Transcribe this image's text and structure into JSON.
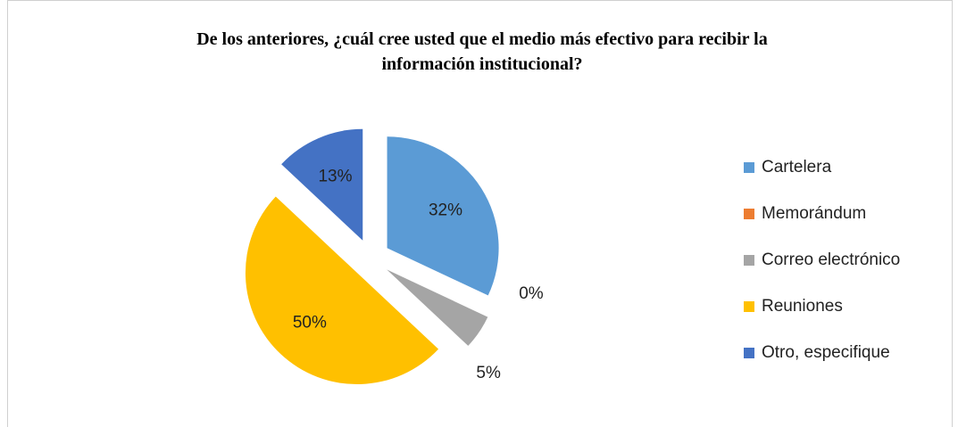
{
  "chart_data": {
    "type": "pie",
    "title": "De los anteriores, ¿cuál cree usted que el medio más efectivo para recibir la información institucional?",
    "categories": [
      "Cartelera",
      "Memorándum",
      "Correo electrónico",
      "Reuniones",
      "Otro, especifique"
    ],
    "values": [
      32,
      0,
      5,
      50,
      13
    ],
    "value_labels": [
      "32%",
      "0%",
      "5%",
      "50%",
      "13%"
    ],
    "colors": [
      "#5b9bd5",
      "#ed7d31",
      "#a5a5a5",
      "#ffc000",
      "#4472c4"
    ],
    "legend": "right"
  }
}
